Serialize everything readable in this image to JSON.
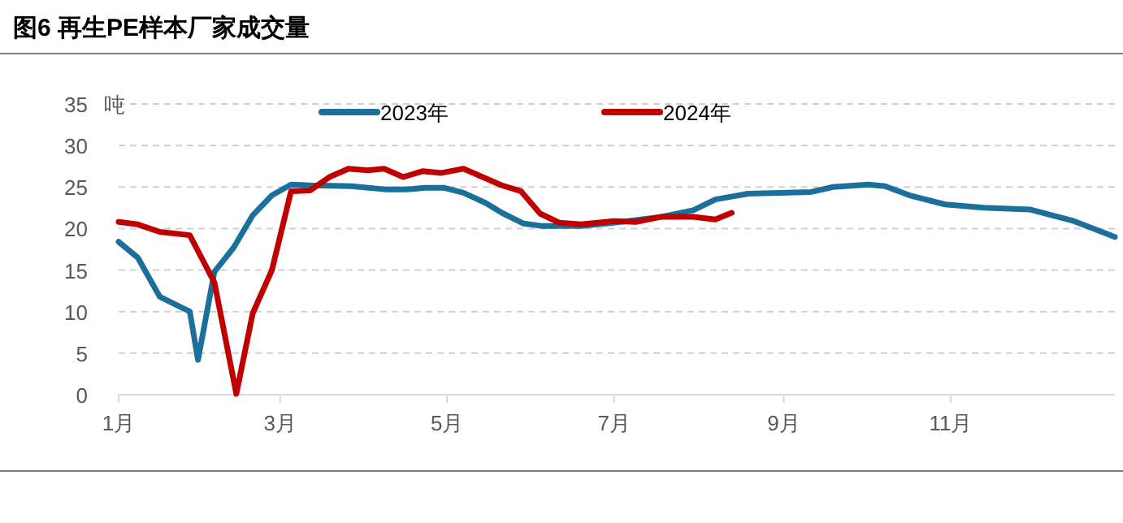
{
  "chart_data": {
    "type": "line",
    "title": "图6 再生PE样本厂家成交量",
    "ylabel": "吨",
    "legend": "top",
    "grid": "y",
    "line_style": "solid",
    "marker": "none",
    "xlim": [
      "--01-01",
      "--12-31"
    ],
    "xticks": [
      {
        "value": "--01-01",
        "label": "1月"
      },
      {
        "value": "--03-01",
        "label": "3月"
      },
      {
        "value": "--05-01",
        "label": "5月"
      },
      {
        "value": "--07-01",
        "label": "7月"
      },
      {
        "value": "--09-01",
        "label": "9月"
      },
      {
        "value": "--11-01",
        "label": "11月"
      }
    ],
    "ylim": [
      0,
      35
    ],
    "yticks": [
      0,
      5,
      10,
      15,
      20,
      25,
      30,
      35
    ],
    "series": [
      {
        "name": "2023年",
        "color": "#1b6f9b",
        "x": [
          "--01-01",
          "--01-08",
          "--01-16",
          "--01-27",
          "--01-30",
          "--02-05",
          "--02-12",
          "--02-19",
          "--02-26",
          "--03-05",
          "--03-12",
          "--03-27",
          "--04-09",
          "--04-16",
          "--04-23",
          "--04-30",
          "--05-07",
          "--05-15",
          "--05-21",
          "--05-29",
          "--06-05",
          "--06-19",
          "--07-01",
          "--07-18",
          "--07-30",
          "--08-07",
          "--08-19",
          "--09-11",
          "--09-19",
          "--10-02",
          "--10-08",
          "--10-17",
          "--10-30",
          "--11-13",
          "--11-30",
          "--12-16",
          "--12-31"
        ],
        "values": [
          18.4,
          16.5,
          11.8,
          10.0,
          4.2,
          14.8,
          17.7,
          21.6,
          24.0,
          25.3,
          25.2,
          25.1,
          24.7,
          24.7,
          24.9,
          24.9,
          24.3,
          23.1,
          21.9,
          20.6,
          20.3,
          20.3,
          20.7,
          21.4,
          22.2,
          23.5,
          24.2,
          24.4,
          25.0,
          25.3,
          25.1,
          24.0,
          22.9,
          22.5,
          22.3,
          20.9,
          19.0
        ]
      },
      {
        "name": "2024年",
        "color": "#c00000",
        "x": [
          "--01-01",
          "--01-08",
          "--01-16",
          "--01-27",
          "--02-05",
          "--02-13",
          "--02-19",
          "--02-26",
          "--03-05",
          "--03-12",
          "--03-19",
          "--03-26",
          "--04-02",
          "--04-08",
          "--04-15",
          "--04-22",
          "--04-29",
          "--05-07",
          "--05-14",
          "--05-21",
          "--05-28",
          "--06-04",
          "--06-11",
          "--06-19",
          "--07-01",
          "--07-09",
          "--07-18",
          "--07-30",
          "--08-07",
          "--08-13"
        ],
        "values": [
          20.8,
          20.5,
          19.6,
          19.2,
          13.5,
          0.1,
          9.8,
          15.0,
          24.5,
          24.6,
          26.2,
          27.2,
          27.0,
          27.2,
          26.2,
          26.9,
          26.7,
          27.2,
          26.2,
          25.2,
          24.5,
          21.8,
          20.7,
          20.5,
          20.9,
          20.8,
          21.4,
          21.4,
          21.1,
          21.9
        ]
      }
    ]
  }
}
